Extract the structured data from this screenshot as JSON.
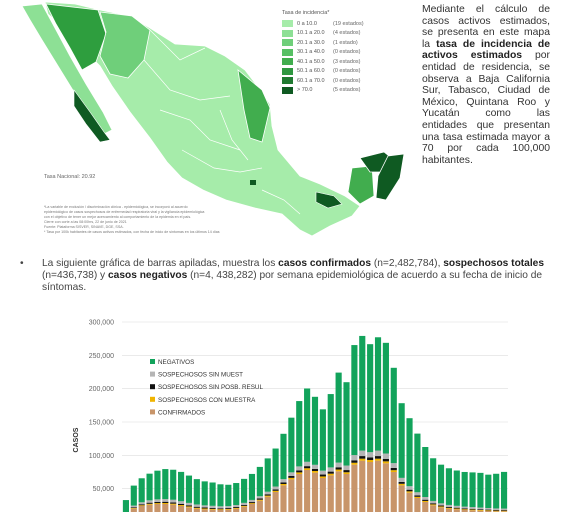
{
  "map": {
    "legend_title": "Tasa de incidencia*",
    "legend": [
      {
        "range": "0 a 10.0",
        "count": "(19 estados)",
        "color": "#a6ecaa"
      },
      {
        "range": "10.1 a 20.0",
        "count": "(4 estados)",
        "color": "#8de095"
      },
      {
        "range": "20.1 a 30.0",
        "count": "(1 estado)",
        "color": "#6fcf7a"
      },
      {
        "range": "30.1 a 40.0",
        "count": "(0 estados)",
        "color": "#57c064"
      },
      {
        "range": "40.1 a 50.0",
        "count": "(3 estados)",
        "color": "#41ad4e"
      },
      {
        "range": "50.1 a 60.0",
        "count": "(0 estados)",
        "color": "#2f9740"
      },
      {
        "range": "60.1 a 70.0",
        "count": "(0 estados)",
        "color": "#207a31"
      },
      {
        "range": "> 70.0",
        "count": "(5 estados)",
        "color": "#0f5a22"
      }
    ],
    "national_rate": "Tasa Nacional: 20.92",
    "notes": [
      "*La variable de exclusión / discriminación clínica - epidemiológica, se incorporó al acuerdo",
      "epidemiológico de casos sospechosos de enfermedad respiratoria viral y la vigilancia epidemiológica",
      "con el objetivo de tener un mejor acercamiento al comportamiento de la epidemia en el país.",
      "Cierre con corte a las 08:00hrs, 22 de junio de 2021",
      "Fuente: Plataforma SISVER, SINAVE, DGE, SSA.",
      "* Tasa por 100k habitantes de casos activos estimados, con fecha de inicio de síntomas en los últimos 14 días"
    ]
  },
  "description": {
    "p1": "Mediante el cálculo de casos activos estimados, se presenta en este mapa la ",
    "b1": "tasa de incidencia de activos estimados",
    "p2": " por entidad de residencia, se observa a Baja California Sur, Tabasco, Ciudad de México, Quintana Roo y Yucatán como las entidades que presentan una tasa estimada mayor a 70 por cada 100,000 habitantes."
  },
  "intro": {
    "bullet": "•",
    "t1": "La siguiente gráfica de barras apiladas, muestra los ",
    "b1": "casos confirmados",
    "t2": " (n=2,482,784), ",
    "b2": "sospechosos totales",
    "t3": " (n=436,738) y ",
    "b3": "casos negativos",
    "t4": " (n=4, 438,282) por semana epidemiológica de acuerdo a su fecha de inicio de síntomas."
  },
  "chart_data": {
    "type": "bar",
    "stacked": true,
    "ylabel": "CASOS",
    "ylim": [
      0,
      300000
    ],
    "yticks": [
      "300,000",
      "250,000",
      "200,000",
      "150,000",
      "100,000",
      "50,000"
    ],
    "legend_position": "top-left",
    "series": [
      {
        "name": "NEGATIVOS",
        "color": "#12a35b",
        "values": [
          18000,
          30000,
          36000,
          40000,
          43000,
          45000,
          45000,
          44000,
          41000,
          38000,
          36000,
          35000,
          33000,
          32000,
          33000,
          36000,
          39000,
          44000,
          50000,
          57000,
          68000,
          82000,
          98000,
          110000,
          102000,
          92000,
          110000,
          135000,
          125000,
          165000,
          172000,
          162000,
          170000,
          166000,
          143000,
          112000,
          102000,
          88000,
          75000,
          64000,
          58000,
          55000,
          53000,
          52000,
          52000,
          52000,
          50000,
          52000,
          55000
        ]
      },
      {
        "name": "SOSPECHOSOS SIN MUEST",
        "color": "#b5b5b5",
        "values": [
          1500,
          2500,
          3000,
          3500,
          3800,
          4000,
          4000,
          3900,
          3600,
          3400,
          3200,
          3100,
          3000,
          2900,
          2900,
          3000,
          3200,
          3400,
          3800,
          4200,
          4800,
          5500,
          6000,
          6500,
          6200,
          5800,
          6300,
          7000,
          6800,
          7800,
          8200,
          8000,
          8200,
          8000,
          7200,
          6000,
          5200,
          4600,
          4000,
          3500,
          3200,
          3000,
          2800,
          2700,
          2600,
          2500,
          2400,
          2300,
          2200
        ]
      },
      {
        "name": "SOSPECHOSOS SIN POSB. RESUL",
        "color": "#111111",
        "values": [
          800,
          1200,
          1500,
          1700,
          1800,
          1900,
          1900,
          1800,
          1700,
          1600,
          1500,
          1450,
          1400,
          1350,
          1400,
          1500,
          1600,
          1800,
          2000,
          2200,
          2500,
          2800,
          3000,
          3200,
          3100,
          2900,
          3100,
          3400,
          3300,
          3700,
          3900,
          3800,
          3900,
          3800,
          3400,
          2900,
          2500,
          2200,
          1900,
          1700,
          1500,
          1400,
          1300,
          1250,
          1200,
          1150,
          1100,
          1050,
          1000
        ]
      },
      {
        "name": "SOSPECHOSOS CON MUESTRA",
        "color": "#f0b400",
        "values": [
          600,
          900,
          1100,
          1300,
          1400,
          1500,
          1500,
          1450,
          1350,
          1300,
          1250,
          1200,
          1150,
          1100,
          1150,
          1200,
          1300,
          1450,
          1600,
          1800,
          2000,
          2200,
          2400,
          2600,
          2500,
          2300,
          2500,
          2700,
          2600,
          2900,
          3000,
          2950,
          3000,
          2950,
          2700,
          2300,
          2000,
          1800,
          1600,
          1400,
          1300,
          1200,
          1150,
          1100,
          1100,
          1050,
          1000,
          1000,
          950
        ]
      },
      {
        "name": "CONFIRMADOS",
        "color": "#c8956a",
        "values": [
          12000,
          20000,
          24000,
          26000,
          27000,
          27000,
          26000,
          24000,
          22000,
          20000,
          19000,
          18500,
          18000,
          18500,
          20000,
          23000,
          27000,
          32000,
          38000,
          45000,
          55000,
          64000,
          72000,
          78000,
          74000,
          66000,
          70000,
          76000,
          72000,
          86000,
          92000,
          90000,
          92000,
          88000,
          75000,
          55000,
          44000,
          36000,
          30000,
          25000,
          22000,
          20000,
          19000,
          18000,
          17500,
          17000,
          16500,
          16000,
          16000
        ]
      }
    ]
  }
}
